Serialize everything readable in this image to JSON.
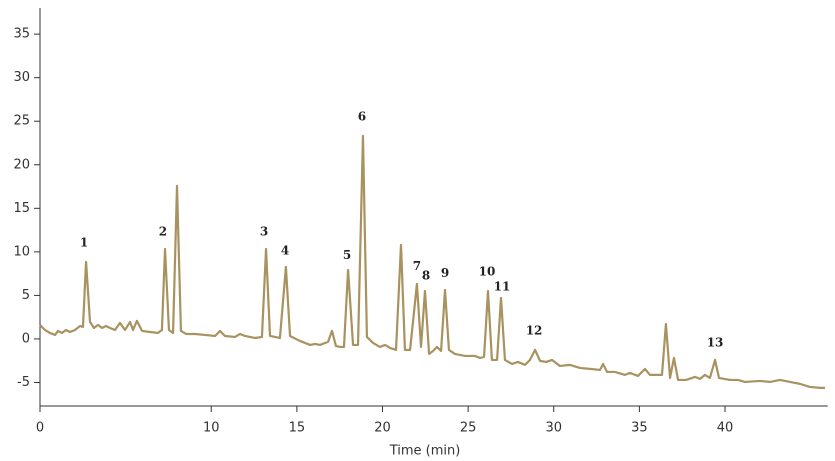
{
  "chart_data": {
    "type": "line",
    "xlabel": "Time (min)",
    "x": [
      0,
      0.29,
      0.58,
      0.88,
      1.05,
      1.28,
      1.52,
      1.75,
      2.04,
      2.34,
      2.51,
      2.69,
      2.92,
      3.15,
      3.39,
      3.62,
      3.85,
      4.09,
      4.38,
      4.67,
      4.96,
      5.26,
      5.43,
      5.66,
      5.96,
      6.42,
      6.89,
      7.12,
      7.3,
      7.53,
      7.77,
      8.0,
      8.23,
      8.53,
      9.05,
      9.64,
      10.22,
      10.51,
      10.8,
      11.39,
      11.68,
      11.97,
      12.55,
      12.96,
      13.2,
      13.43,
      14.01,
      14.36,
      14.6,
      15.18,
      15.77,
      16.06,
      16.35,
      16.82,
      17.05,
      17.28,
      17.52,
      17.75,
      17.99,
      18.28,
      18.57,
      18.86,
      19.09,
      19.45,
      19.85,
      20.15,
      20.44,
      20.79,
      21.08,
      21.31,
      21.61,
      22.01,
      22.25,
      22.48,
      22.72,
      22.95,
      23.18,
      23.42,
      23.65,
      23.88,
      24.23,
      24.82,
      25.4,
      25.69,
      25.93,
      26.16,
      26.39,
      26.69,
      26.92,
      27.15,
      27.56,
      27.91,
      28.32,
      28.61,
      28.91,
      29.2,
      29.55,
      29.9,
      30.36,
      30.95,
      31.53,
      32.12,
      32.7,
      32.88,
      33.11,
      33.58,
      34.16,
      34.45,
      34.92,
      35.33,
      35.62,
      35.91,
      36.32,
      36.55,
      36.79,
      37.02,
      37.26,
      37.72,
      38.25,
      38.54,
      38.83,
      39.12,
      39.42,
      39.65,
      40.29,
      40.76,
      41.17,
      42.04,
      42.63,
      43.21,
      43.8,
      44.38,
      44.96,
      45.55,
      45.84
    ],
    "series": [
      {
        "color": "#a8925f",
        "values": [
          1.6,
          1.03,
          0.69,
          0.46,
          0.92,
          0.69,
          1.03,
          0.8,
          1.03,
          1.49,
          1.38,
          8.84,
          1.95,
          1.26,
          1.61,
          1.26,
          1.49,
          1.26,
          1.03,
          1.84,
          1.03,
          1.95,
          1.03,
          2.07,
          0.92,
          0.8,
          0.69,
          1.03,
          10.33,
          1.03,
          0.69,
          17.56,
          0.92,
          0.57,
          0.57,
          0.46,
          0.34,
          0.92,
          0.34,
          0.23,
          0.57,
          0.34,
          0.11,
          0.23,
          10.33,
          0.34,
          0.11,
          8.26,
          0.34,
          -0.23,
          -0.69,
          -0.57,
          -0.69,
          -0.34,
          0.92,
          -0.8,
          -0.92,
          -0.92,
          7.92,
          -0.69,
          -0.69,
          23.3,
          0.23,
          -0.46,
          -0.92,
          -0.69,
          -1.03,
          -1.26,
          10.79,
          -1.26,
          -1.26,
          6.31,
          -0.92,
          5.51,
          -1.72,
          -1.38,
          -0.92,
          -1.38,
          5.62,
          -1.26,
          -1.72,
          -1.95,
          -1.95,
          -2.18,
          -2.07,
          5.51,
          -2.41,
          -2.41,
          4.71,
          -2.41,
          -2.87,
          -2.64,
          -2.98,
          -2.41,
          -1.26,
          -2.52,
          -2.64,
          -2.41,
          -3.1,
          -2.98,
          -3.33,
          -3.44,
          -3.56,
          -2.87,
          -3.79,
          -3.79,
          -4.13,
          -3.9,
          -4.25,
          -3.44,
          -4.13,
          -4.13,
          -4.13,
          1.72,
          -4.48,
          -2.18,
          -4.71,
          -4.71,
          -4.36,
          -4.59,
          -4.13,
          -4.48,
          -2.41,
          -4.48,
          -4.71,
          -4.71,
          -4.94,
          -4.82,
          -4.94,
          -4.71,
          -4.94,
          -5.16,
          -5.51,
          -5.62,
          -5.62
        ]
      }
    ],
    "annotations": [
      {
        "label": "1",
        "x": 2.57,
        "y": 11.0
      },
      {
        "label": "2",
        "x": 7.18,
        "y": 12.3
      },
      {
        "label": "3",
        "x": 13.08,
        "y": 12.3
      },
      {
        "label": "4",
        "x": 14.31,
        "y": 10.1
      },
      {
        "label": "5",
        "x": 17.93,
        "y": 9.6
      },
      {
        "label": "6",
        "x": 18.8,
        "y": 25.5
      },
      {
        "label": "7",
        "x": 22.01,
        "y": 8.3
      },
      {
        "label": "8",
        "x": 22.54,
        "y": 7.2
      },
      {
        "label": "9",
        "x": 23.65,
        "y": 7.5
      },
      {
        "label": "10",
        "x": 26.1,
        "y": 7.7
      },
      {
        "label": "11",
        "x": 26.98,
        "y": 5.97
      },
      {
        "label": "12",
        "x": 28.85,
        "y": 0.92
      },
      {
        "label": "13",
        "x": 39.42,
        "y": -0.46
      }
    ],
    "xlim": [
      0,
      46
    ],
    "ylim": [
      -7.7,
      38
    ],
    "xticks": [
      0,
      10,
      15,
      20,
      25,
      30,
      35,
      40
    ],
    "yticks": [
      -5,
      0,
      5,
      10,
      15,
      20,
      25,
      30,
      35
    ],
    "grid": false
  }
}
